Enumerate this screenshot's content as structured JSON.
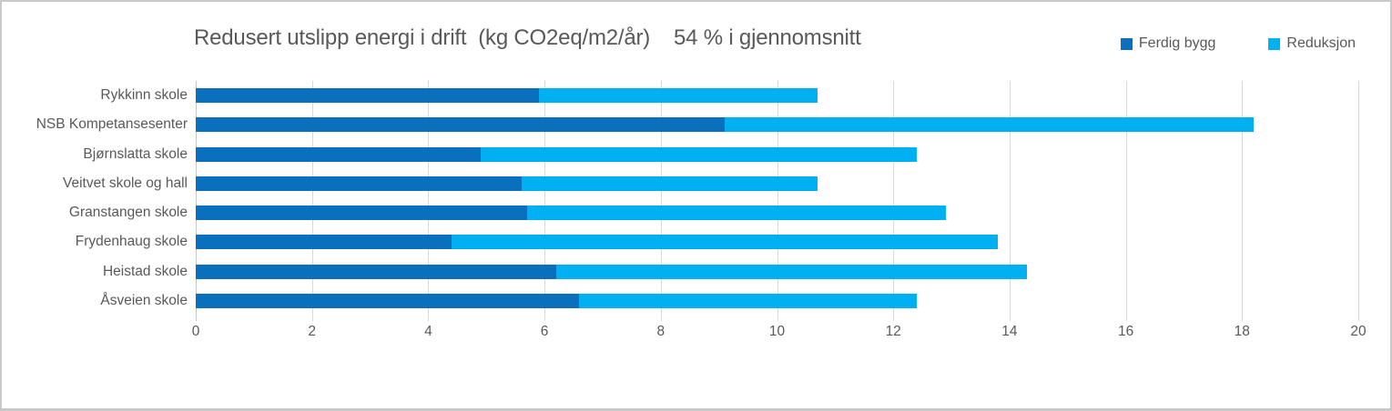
{
  "chart_data": {
    "type": "bar",
    "orientation": "horizontal",
    "stacked": true,
    "title": "Redusert utslipp energi i drift  (kg CO2eq/m2/år)    54 % i gjennomsnitt",
    "average_note": "54 % i gjennomsnitt",
    "categories": [
      "Rykkinn skole",
      "NSB Kompetansesenter",
      "Bjørnslatta skole",
      "Veitvet skole og hall",
      "Granstangen skole",
      "Frydenhaug skole",
      "Heistad skole",
      "Åsveien skole"
    ],
    "series": [
      {
        "name": "Ferdig bygg",
        "color": "#0a70be",
        "values": [
          5.9,
          9.1,
          4.9,
          5.6,
          5.7,
          4.4,
          6.2,
          6.6
        ]
      },
      {
        "name": "Reduksjon",
        "color": "#00b0f0",
        "values": [
          4.8,
          9.1,
          7.5,
          5.1,
          7.2,
          9.4,
          8.1,
          5.8
        ]
      }
    ],
    "totals": [
      10.7,
      18.2,
      12.4,
      10.7,
      12.9,
      13.8,
      14.3,
      12.4
    ],
    "xlabel": "",
    "ylabel": "",
    "xlim": [
      0,
      20
    ],
    "xticks": [
      0,
      2,
      4,
      6,
      8,
      10,
      12,
      14,
      16,
      18,
      20
    ],
    "grid": "vertical-major",
    "legend_position": "top-right",
    "colors": {
      "text": "#595959",
      "gridline": "#d9d9d9",
      "frame_border": "#c9c9c9",
      "ferdig_bygg": "#0a70be",
      "reduksjon": "#00b0f0"
    }
  }
}
